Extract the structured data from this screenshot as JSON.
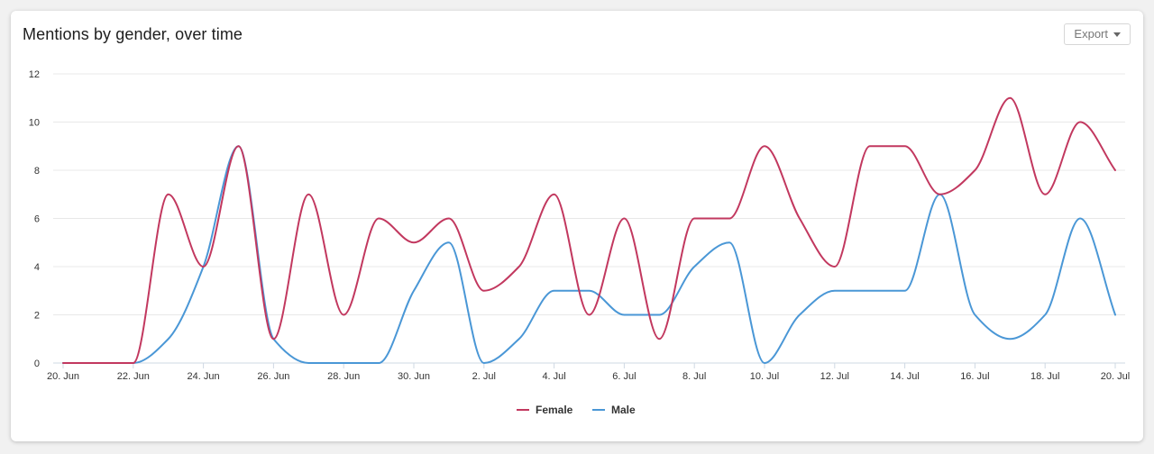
{
  "title": "Mentions by gender, over time",
  "export_label": "Export",
  "colors": {
    "female": "#c2385f",
    "male": "#4a97d6",
    "grid": "#e8e8e8",
    "axis": "#cfd8e3"
  },
  "chart_data": {
    "type": "line",
    "title": "Mentions by gender, over time",
    "x": [
      "20 Jun",
      "21 Jun",
      "22 Jun",
      "23 Jun",
      "24 Jun",
      "25 Jun",
      "26 Jun",
      "27 Jun",
      "28 Jun",
      "29 Jun",
      "30 Jun",
      "1 Jul",
      "2 Jul",
      "3 Jul",
      "4 Jul",
      "5 Jul",
      "6 Jul",
      "7 Jul",
      "8 Jul",
      "9 Jul",
      "10 Jul",
      "11 Jul",
      "12 Jul",
      "13 Jul",
      "14 Jul",
      "15 Jul",
      "16 Jul",
      "17 Jul",
      "18 Jul",
      "19 Jul",
      "20 Jul"
    ],
    "x_tick_labels": [
      "20. Jun",
      "22. Jun",
      "24. Jun",
      "26. Jun",
      "28. Jun",
      "30. Jun",
      "2. Jul",
      "4. Jul",
      "6. Jul",
      "8. Jul",
      "10. Jul",
      "12. Jul",
      "14. Jul",
      "16. Jul",
      "18. Jul",
      "20. Jul"
    ],
    "y_ticks": [
      0,
      2,
      4,
      6,
      8,
      10,
      12
    ],
    "ylim": [
      0,
      12
    ],
    "grid": true,
    "legend_position": "bottom-center",
    "series": [
      {
        "name": "Female",
        "values": [
          0,
          0,
          0,
          7,
          4,
          9,
          1,
          7,
          2,
          6,
          5,
          6,
          3,
          4,
          7,
          2,
          6,
          1,
          6,
          6,
          9,
          6,
          4,
          9,
          9,
          7,
          8,
          11,
          7,
          10,
          8
        ]
      },
      {
        "name": "Male",
        "values": [
          0,
          0,
          0,
          1,
          4,
          9,
          1,
          0,
          0,
          0,
          3,
          5,
          0,
          1,
          3,
          3,
          2,
          2,
          4,
          5,
          0,
          2,
          3,
          3,
          3,
          7,
          2,
          1,
          2,
          6,
          2
        ]
      }
    ]
  }
}
